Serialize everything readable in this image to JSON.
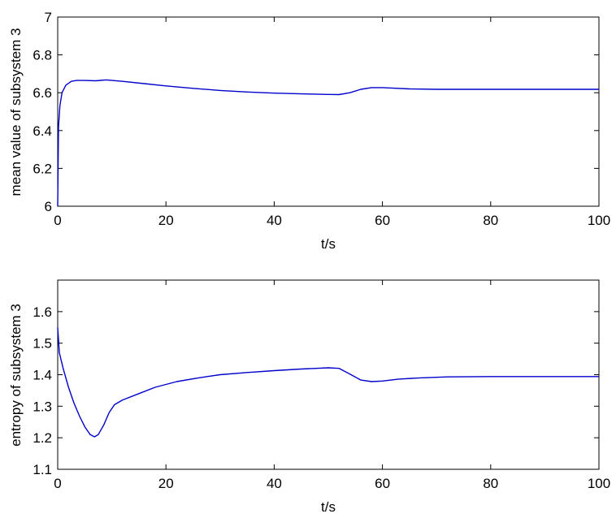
{
  "chart_data": [
    {
      "type": "line",
      "xlabel": "t/s",
      "ylabel": "mean value of subsystem 3",
      "xlim": [
        0,
        100
      ],
      "ylim": [
        6,
        7
      ],
      "xticks": [
        "0",
        "20",
        "40",
        "60",
        "80",
        "100"
      ],
      "yticks": [
        "6",
        "6.2",
        "6.4",
        "6.6",
        "6.8",
        "7"
      ],
      "grid": false,
      "color": "#0000cc",
      "series": [
        {
          "x": [
            0,
            0.15,
            0.4,
            0.8,
            1.5,
            2.5,
            3.5,
            5,
            7,
            9,
            12,
            16,
            20,
            25,
            30,
            35,
            40,
            45,
            50,
            52,
            54,
            56,
            58,
            60,
            62,
            65,
            70,
            80,
            90,
            100
          ],
          "y": [
            6.0,
            6.42,
            6.53,
            6.6,
            6.64,
            6.66,
            6.665,
            6.665,
            6.663,
            6.668,
            6.66,
            6.648,
            6.636,
            6.623,
            6.612,
            6.604,
            6.598,
            6.594,
            6.591,
            6.59,
            6.6,
            6.618,
            6.627,
            6.627,
            6.624,
            6.62,
            6.618,
            6.618,
            6.618,
            6.618
          ]
        }
      ]
    },
    {
      "type": "line",
      "xlabel": "t/s",
      "ylabel": "entropy of subsystem 3",
      "xlim": [
        0,
        100
      ],
      "ylim": [
        1.1,
        1.7
      ],
      "xticks": [
        "0",
        "20",
        "40",
        "60",
        "80",
        "100"
      ],
      "yticks": [
        "1.1",
        "1.2",
        "1.3",
        "1.4",
        "1.5",
        "1.6"
      ],
      "grid": false,
      "color": "#0000cc",
      "series": [
        {
          "x": [
            0,
            0.3,
            1,
            2,
            3,
            4,
            5,
            6,
            6.8,
            7.5,
            8.5,
            9.5,
            10.5,
            12,
            15,
            18,
            22,
            26,
            30,
            35,
            40,
            45,
            50,
            52,
            54,
            56,
            58,
            60,
            63,
            67,
            72,
            80,
            90,
            100
          ],
          "y": [
            1.55,
            1.47,
            1.42,
            1.36,
            1.31,
            1.27,
            1.235,
            1.21,
            1.203,
            1.21,
            1.24,
            1.28,
            1.305,
            1.32,
            1.34,
            1.36,
            1.378,
            1.39,
            1.4,
            1.407,
            1.413,
            1.418,
            1.422,
            1.42,
            1.402,
            1.383,
            1.378,
            1.38,
            1.386,
            1.39,
            1.393,
            1.394,
            1.394,
            1.394
          ]
        }
      ]
    }
  ]
}
